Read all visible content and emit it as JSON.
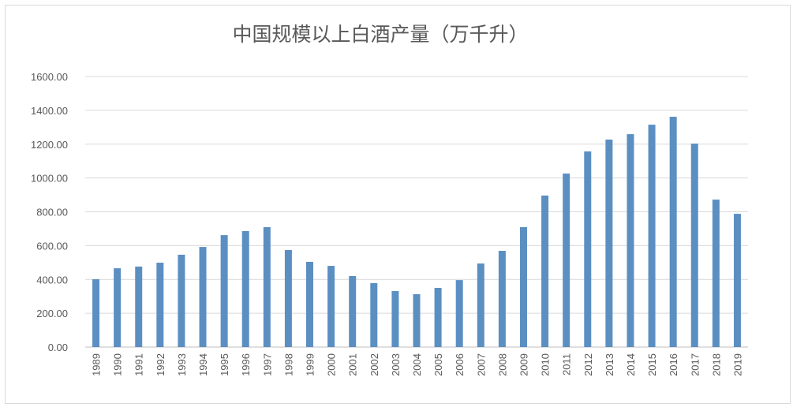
{
  "chart_data": {
    "type": "bar",
    "title": "中国规模以上白酒产量（万千升）",
    "xlabel": "",
    "ylabel": "",
    "ylim": [
      0,
      1600
    ],
    "yticks": [
      "0.00",
      "200.00",
      "400.00",
      "600.00",
      "800.00",
      "1000.00",
      "1200.00",
      "1400.00",
      "1600.00"
    ],
    "grid": true,
    "legend": "none",
    "bar_color": "#5b8fc2",
    "categories": [
      "1989",
      "1990",
      "1991",
      "1992",
      "1993",
      "1994",
      "1995",
      "1996",
      "1997",
      "1998",
      "1999",
      "2000",
      "2001",
      "2002",
      "2003",
      "2004",
      "2005",
      "2006",
      "2007",
      "2008",
      "2009",
      "2010",
      "2011",
      "2012",
      "2013",
      "2014",
      "2015",
      "2016",
      "2017",
      "2018",
      "2019"
    ],
    "values": [
      401,
      466,
      476,
      499,
      546,
      592,
      662,
      686,
      709,
      574,
      504,
      480,
      420,
      378,
      331,
      313,
      350,
      396,
      494,
      569,
      709,
      896,
      1026,
      1157,
      1227,
      1259,
      1315,
      1362,
      1203,
      872,
      788
    ]
  }
}
